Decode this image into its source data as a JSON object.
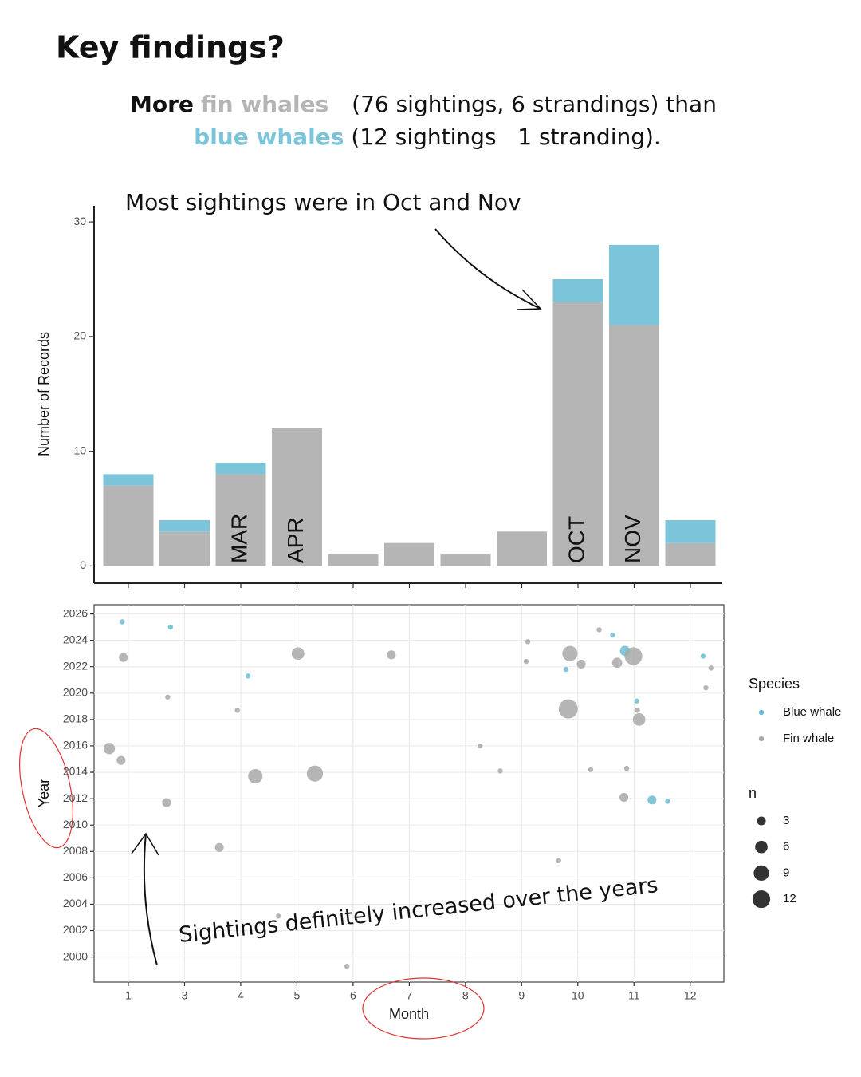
{
  "header": {
    "title": "Key findings?",
    "line1": [
      "More",
      "fin whales",
      "(76 sightings, 6 strandings) than"
    ],
    "line2": [
      "blue whales",
      "(12 sightings   1 stranding)."
    ]
  },
  "chart_data": [
    {
      "type": "bar",
      "stacked": true,
      "annotation": "Most sightings were in Oct and Nov",
      "ylabel": "Number of Records",
      "categories": [
        null,
        null,
        "MAR",
        "APR",
        null,
        null,
        null,
        null,
        "OCT",
        "NOV",
        null
      ],
      "series": [
        {
          "color": "#b5b5b5",
          "values": [
            7,
            3,
            8,
            12,
            1,
            2,
            1,
            3,
            23,
            21,
            2
          ]
        },
        {
          "color": "#7cc4d9",
          "values": [
            1,
            1,
            1,
            0,
            0,
            0,
            0,
            0,
            2,
            7,
            2
          ]
        }
      ],
      "ylim": [
        -1.5,
        31.4
      ],
      "yticks": [
        0,
        10,
        20,
        30
      ]
    },
    {
      "type": "scatter",
      "annotation": "Sightings definitely increased over the years",
      "xlabel": "Month",
      "ylabel": "Year",
      "xlim": [
        0.39,
        11.6
      ],
      "xticks": [
        1,
        {
          "value": 2,
          "label": "3"
        },
        {
          "value": 3,
          "label": "4"
        },
        {
          "value": 4,
          "label": "5"
        },
        {
          "value": 5,
          "label": "6"
        },
        {
          "value": 6,
          "label": "7"
        },
        {
          "value": 7,
          "label": "8"
        },
        {
          "value": 8,
          "label": "9"
        },
        {
          "value": 9,
          "label": "10"
        },
        {
          "value": 10,
          "label": "11"
        },
        {
          "value": 11,
          "label": "12"
        }
      ],
      "ylim": [
        1998.1,
        2026.7
      ],
      "yticks": [
        2000,
        2002,
        2004,
        2006,
        2008,
        2010,
        2012,
        2014,
        2016,
        2018,
        2020,
        2022,
        2024,
        2026
      ],
      "grid": true,
      "legend": "right",
      "legend_title": "Species",
      "size_title": "n",
      "size_legend": [
        3,
        6,
        9,
        12
      ],
      "series": [
        {
          "name": "Blue whale",
          "color": "#6cbcd3",
          "x": [
            0.89,
            1.75,
            3.13,
            9.62,
            8.79,
            9.84,
            10.05,
            10.32,
            10.6,
            11.23
          ],
          "y": [
            2025.4,
            2025.0,
            2021.3,
            2024.4,
            2021.8,
            2023.2,
            2019.4,
            2011.9,
            2011.8,
            2022.8
          ],
          "sizes": [
            1,
            1,
            1,
            1,
            1,
            4,
            1,
            3,
            1,
            1
          ]
        },
        {
          "name": "Fin whale",
          "color": "#a8a8a8",
          "x": [
            0.91,
            1.7,
            2.94,
            4.02,
            5.68,
            0.66,
            0.87,
            3.26,
            4.32,
            1.68,
            2.62,
            3.67,
            4.89,
            7.26,
            7.62,
            8.11,
            8.08,
            9.38,
            8.86,
            9.06,
            8.83,
            9.99,
            9.7,
            10.06,
            10.09,
            9.23,
            9.87,
            9.82,
            8.66,
            11.37,
            11.28
          ],
          "y": [
            2022.7,
            2019.7,
            2018.7,
            2023.0,
            2022.9,
            2015.8,
            2014.9,
            2013.7,
            2013.9,
            2011.7,
            2008.3,
            2003.1,
            1999.3,
            2016.0,
            2014.1,
            2023.9,
            2022.4,
            2024.8,
            2023.0,
            2022.2,
            2018.8,
            2022.8,
            2022.3,
            2018.7,
            2018.0,
            2014.2,
            2014.3,
            2012.1,
            2007.3,
            2021.9,
            2020.4
          ],
          "sizes": [
            3,
            1,
            1,
            6,
            3,
            5,
            3,
            8,
            10,
            3,
            3,
            1,
            1,
            1,
            1,
            1,
            1,
            1,
            9,
            3,
            14,
            12,
            4,
            1,
            6,
            1,
            1,
            3,
            1,
            1,
            1
          ]
        }
      ]
    }
  ]
}
